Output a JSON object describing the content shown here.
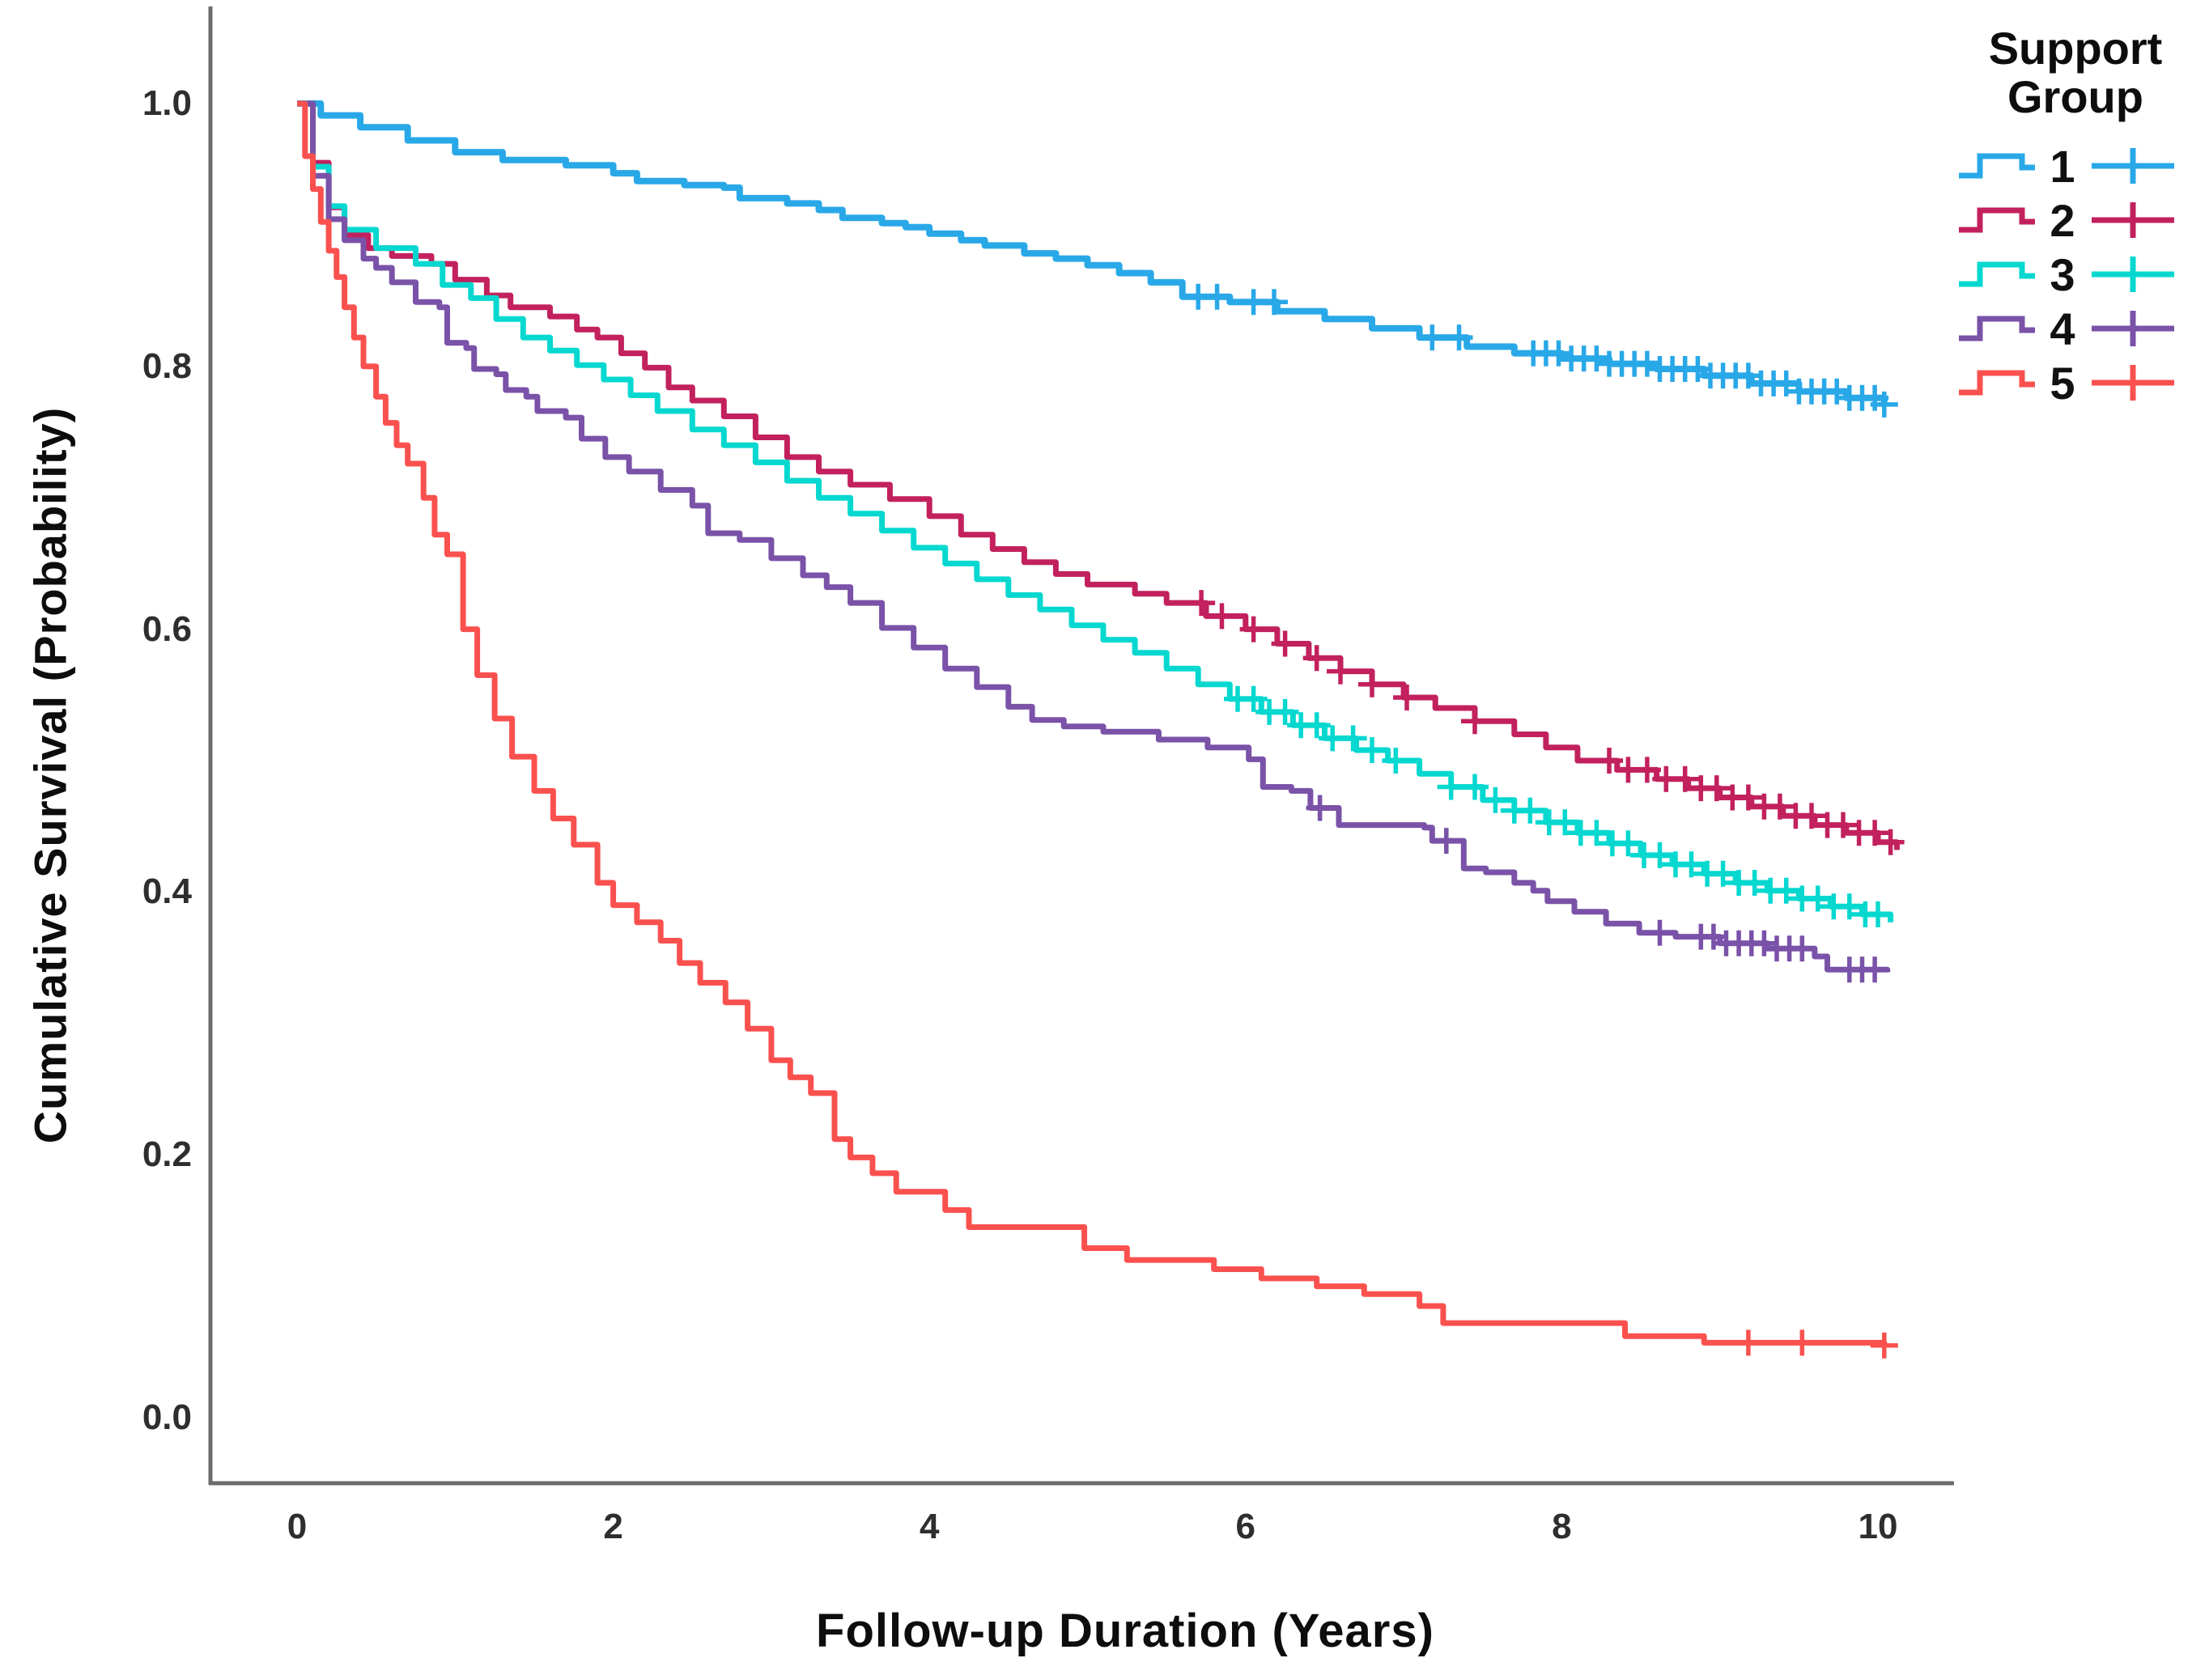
{
  "figure": {
    "background": "#ffffff"
  },
  "axes": {
    "x": {
      "title": "Follow-up Duration (Years)",
      "ticks": [
        "0",
        "2",
        "4",
        "6",
        "8",
        "10"
      ],
      "tick_values": [
        0,
        2,
        4,
        6,
        8,
        10
      ],
      "range": [
        -0.55,
        10.48
      ]
    },
    "y": {
      "title": "Cumulative Survival (Probability)",
      "ticks": [
        "0.0",
        "0.2",
        "0.4",
        "0.6",
        "0.8",
        "1.0"
      ],
      "tick_values": [
        0,
        0.2,
        0.4,
        0.6,
        0.8,
        1.0
      ],
      "range": [
        -0.05,
        1.08
      ]
    }
  },
  "legend": {
    "title": "Support Group",
    "position": "top-right",
    "entries": [
      {
        "label": "1",
        "color": "#29A8E8",
        "line_icon": "step-line",
        "censor_icon": "plus-cross"
      },
      {
        "label": "2",
        "color": "#C2215E",
        "line_icon": "step-line",
        "censor_icon": "plus-cross"
      },
      {
        "label": "3",
        "color": "#06D8D0",
        "line_icon": "step-line",
        "censor_icon": "plus-cross"
      },
      {
        "label": "4",
        "color": "#7A52A8",
        "line_icon": "step-line",
        "censor_icon": "plus-cross"
      },
      {
        "label": "5",
        "color": "#FA514E",
        "line_icon": "step-line",
        "censor_icon": "plus-cross"
      }
    ]
  },
  "chart_data": {
    "type": "line",
    "subtype": "kaplan-meier-survival-step",
    "title": "",
    "xlabel": "Follow-up Duration (Years)",
    "ylabel": "Cumulative Survival (Probability)",
    "xlim": [
      -0.55,
      10.48
    ],
    "ylim": [
      -0.05,
      1.08
    ],
    "grid": false,
    "legend_position": "top-right",
    "series": [
      {
        "name": "1",
        "color": "#29A8E8",
        "points": [
          [
            0,
            1.0
          ],
          [
            0.15,
            0.991
          ],
          [
            0.4,
            0.982
          ],
          [
            0.7,
            0.972
          ],
          [
            1.0,
            0.963
          ],
          [
            1.3,
            0.957
          ],
          [
            1.7,
            0.953
          ],
          [
            2.0,
            0.947
          ],
          [
            2.15,
            0.941
          ],
          [
            2.45,
            0.938
          ],
          [
            2.7,
            0.936
          ],
          [
            2.8,
            0.928
          ],
          [
            3.1,
            0.924
          ],
          [
            3.3,
            0.919
          ],
          [
            3.45,
            0.913
          ],
          [
            3.7,
            0.909
          ],
          [
            3.85,
            0.906
          ],
          [
            4.0,
            0.901
          ],
          [
            4.2,
            0.896
          ],
          [
            4.35,
            0.892
          ],
          [
            4.6,
            0.886
          ],
          [
            4.8,
            0.882
          ],
          [
            5.0,
            0.877
          ],
          [
            5.2,
            0.871
          ],
          [
            5.4,
            0.864
          ],
          [
            5.6,
            0.853
          ],
          [
            5.9,
            0.849
          ],
          [
            6.2,
            0.842
          ],
          [
            6.5,
            0.836
          ],
          [
            6.8,
            0.829
          ],
          [
            7.1,
            0.822
          ],
          [
            7.4,
            0.815
          ],
          [
            7.7,
            0.81
          ],
          [
            8.0,
            0.806
          ],
          [
            8.3,
            0.802
          ],
          [
            8.6,
            0.798
          ],
          [
            8.9,
            0.793
          ],
          [
            9.2,
            0.787
          ],
          [
            9.5,
            0.781
          ],
          [
            9.8,
            0.776
          ],
          [
            10.04,
            0.771
          ]
        ],
        "censor_times": [
          5.7,
          5.82,
          6.05,
          6.18,
          7.18,
          7.35,
          7.82,
          7.9,
          7.98,
          8.06,
          8.14,
          8.22,
          8.3,
          8.38,
          8.46,
          8.54,
          8.62,
          8.7,
          8.78,
          8.86,
          8.94,
          9.02,
          9.1,
          9.18,
          9.26,
          9.34,
          9.42,
          9.5,
          9.58,
          9.66,
          9.74,
          9.82,
          9.9,
          9.98,
          10.04
        ]
      },
      {
        "name": "2",
        "color": "#C2215E",
        "points": [
          [
            0,
            1.0
          ],
          [
            0.1,
            0.955
          ],
          [
            0.2,
            0.921
          ],
          [
            0.3,
            0.9
          ],
          [
            0.45,
            0.89
          ],
          [
            0.6,
            0.884
          ],
          [
            0.85,
            0.878
          ],
          [
            1.0,
            0.866
          ],
          [
            1.2,
            0.854
          ],
          [
            1.35,
            0.845
          ],
          [
            1.6,
            0.838
          ],
          [
            1.77,
            0.828
          ],
          [
            1.9,
            0.822
          ],
          [
            2.05,
            0.81
          ],
          [
            2.2,
            0.799
          ],
          [
            2.35,
            0.784
          ],
          [
            2.5,
            0.774
          ],
          [
            2.7,
            0.762
          ],
          [
            2.9,
            0.746
          ],
          [
            3.1,
            0.731
          ],
          [
            3.3,
            0.72
          ],
          [
            3.5,
            0.71
          ],
          [
            3.75,
            0.699
          ],
          [
            4.0,
            0.686
          ],
          [
            4.2,
            0.672
          ],
          [
            4.4,
            0.661
          ],
          [
            4.6,
            0.651
          ],
          [
            4.8,
            0.642
          ],
          [
            5.0,
            0.634
          ],
          [
            5.3,
            0.627
          ],
          [
            5.5,
            0.62
          ],
          [
            5.75,
            0.61
          ],
          [
            6.0,
            0.6
          ],
          [
            6.2,
            0.589
          ],
          [
            6.4,
            0.578
          ],
          [
            6.6,
            0.568
          ],
          [
            6.8,
            0.558
          ],
          [
            7.0,
            0.548
          ],
          [
            7.2,
            0.54
          ],
          [
            7.45,
            0.53
          ],
          [
            7.7,
            0.52
          ],
          [
            7.9,
            0.51
          ],
          [
            8.1,
            0.5
          ],
          [
            8.35,
            0.493
          ],
          [
            8.6,
            0.486
          ],
          [
            8.8,
            0.479
          ],
          [
            9.0,
            0.472
          ],
          [
            9.2,
            0.465
          ],
          [
            9.4,
            0.458
          ],
          [
            9.6,
            0.451
          ],
          [
            9.8,
            0.445
          ],
          [
            10.0,
            0.438
          ],
          [
            10.12,
            0.432
          ]
        ],
        "censor_times": [
          5.72,
          5.85,
          6.05,
          6.25,
          6.45,
          6.6,
          6.8,
          7.02,
          7.45,
          8.3,
          8.42,
          8.54,
          8.66,
          8.78,
          8.88,
          8.98,
          9.08,
          9.18,
          9.28,
          9.38,
          9.48,
          9.58,
          9.68,
          9.78,
          9.88,
          9.98,
          10.08
        ]
      },
      {
        "name": "3",
        "color": "#06D8D0",
        "points": [
          [
            0,
            1.0
          ],
          [
            0.1,
            0.952
          ],
          [
            0.2,
            0.922
          ],
          [
            0.3,
            0.904
          ],
          [
            0.5,
            0.89
          ],
          [
            0.75,
            0.878
          ],
          [
            0.92,
            0.862
          ],
          [
            1.1,
            0.852
          ],
          [
            1.26,
            0.836
          ],
          [
            1.43,
            0.822
          ],
          [
            1.6,
            0.812
          ],
          [
            1.77,
            0.801
          ],
          [
            1.94,
            0.79
          ],
          [
            2.11,
            0.778
          ],
          [
            2.28,
            0.766
          ],
          [
            2.5,
            0.752
          ],
          [
            2.7,
            0.74
          ],
          [
            2.9,
            0.727
          ],
          [
            3.1,
            0.713
          ],
          [
            3.3,
            0.7
          ],
          [
            3.5,
            0.688
          ],
          [
            3.7,
            0.675
          ],
          [
            3.9,
            0.662
          ],
          [
            4.1,
            0.65
          ],
          [
            4.3,
            0.638
          ],
          [
            4.5,
            0.626
          ],
          [
            4.7,
            0.615
          ],
          [
            4.9,
            0.603
          ],
          [
            5.1,
            0.592
          ],
          [
            5.3,
            0.582
          ],
          [
            5.5,
            0.57
          ],
          [
            5.7,
            0.558
          ],
          [
            5.9,
            0.547
          ],
          [
            6.1,
            0.537
          ],
          [
            6.3,
            0.527
          ],
          [
            6.5,
            0.517
          ],
          [
            6.7,
            0.508
          ],
          [
            6.9,
            0.5
          ],
          [
            7.1,
            0.49
          ],
          [
            7.3,
            0.48
          ],
          [
            7.5,
            0.47
          ],
          [
            7.7,
            0.462
          ],
          [
            7.9,
            0.453
          ],
          [
            8.1,
            0.445
          ],
          [
            8.3,
            0.437
          ],
          [
            8.5,
            0.428
          ],
          [
            8.7,
            0.421
          ],
          [
            8.9,
            0.414
          ],
          [
            9.1,
            0.407
          ],
          [
            9.3,
            0.401
          ],
          [
            9.5,
            0.395
          ],
          [
            9.7,
            0.389
          ],
          [
            9.9,
            0.383
          ],
          [
            10.08,
            0.377
          ]
        ],
        "censor_times": [
          5.95,
          6.05,
          6.15,
          6.25,
          6.35,
          6.45,
          6.55,
          6.68,
          6.8,
          6.95,
          7.3,
          7.45,
          7.58,
          7.7,
          7.8,
          7.92,
          8.02,
          8.12,
          8.22,
          8.32,
          8.42,
          8.52,
          8.62,
          8.72,
          8.82,
          8.92,
          9.02,
          9.12,
          9.22,
          9.32,
          9.42,
          9.52,
          9.62,
          9.72,
          9.82,
          9.92,
          10.0
        ]
      },
      {
        "name": "4",
        "color": "#7A52A8",
        "points": [
          [
            0,
            1.0
          ],
          [
            0.1,
            0.945
          ],
          [
            0.2,
            0.912
          ],
          [
            0.3,
            0.896
          ],
          [
            0.42,
            0.882
          ],
          [
            0.5,
            0.875
          ],
          [
            0.6,
            0.864
          ],
          [
            0.75,
            0.849
          ],
          [
            0.9,
            0.845
          ],
          [
            0.95,
            0.818
          ],
          [
            1.07,
            0.814
          ],
          [
            1.12,
            0.798
          ],
          [
            1.26,
            0.794
          ],
          [
            1.32,
            0.782
          ],
          [
            1.45,
            0.777
          ],
          [
            1.52,
            0.766
          ],
          [
            1.7,
            0.761
          ],
          [
            1.8,
            0.745
          ],
          [
            1.95,
            0.731
          ],
          [
            2.1,
            0.72
          ],
          [
            2.3,
            0.706
          ],
          [
            2.5,
            0.694
          ],
          [
            2.6,
            0.673
          ],
          [
            2.8,
            0.668
          ],
          [
            3.0,
            0.654
          ],
          [
            3.2,
            0.641
          ],
          [
            3.35,
            0.632
          ],
          [
            3.5,
            0.62
          ],
          [
            3.7,
            0.601
          ],
          [
            3.9,
            0.586
          ],
          [
            4.1,
            0.57
          ],
          [
            4.3,
            0.556
          ],
          [
            4.5,
            0.541
          ],
          [
            4.65,
            0.531
          ],
          [
            4.85,
            0.526
          ],
          [
            5.1,
            0.522
          ],
          [
            5.45,
            0.516
          ],
          [
            5.76,
            0.51
          ],
          [
            6.02,
            0.501
          ],
          [
            6.11,
            0.48
          ],
          [
            6.29,
            0.477
          ],
          [
            6.41,
            0.464
          ],
          [
            6.59,
            0.451
          ],
          [
            7.13,
            0.449
          ],
          [
            7.18,
            0.439
          ],
          [
            7.38,
            0.418
          ],
          [
            7.52,
            0.415
          ],
          [
            7.7,
            0.407
          ],
          [
            7.82,
            0.401
          ],
          [
            7.91,
            0.393
          ],
          [
            8.08,
            0.385
          ],
          [
            8.28,
            0.376
          ],
          [
            8.49,
            0.369
          ],
          [
            8.72,
            0.366
          ],
          [
            9.0,
            0.361
          ],
          [
            9.3,
            0.357
          ],
          [
            9.6,
            0.351
          ],
          [
            9.68,
            0.341
          ],
          [
            10.06,
            0.339
          ]
        ],
        "censor_times": [
          6.47,
          7.27,
          8.62,
          8.88,
          8.96,
          9.04,
          9.12,
          9.2,
          9.28,
          9.36,
          9.44,
          9.52,
          9.82,
          9.9,
          9.98
        ]
      },
      {
        "name": "5",
        "color": "#FA514E",
        "points": [
          [
            0,
            1.0
          ],
          [
            0.05,
            0.96
          ],
          [
            0.1,
            0.935
          ],
          [
            0.15,
            0.91
          ],
          [
            0.2,
            0.888
          ],
          [
            0.25,
            0.868
          ],
          [
            0.3,
            0.845
          ],
          [
            0.36,
            0.822
          ],
          [
            0.42,
            0.8
          ],
          [
            0.5,
            0.777
          ],
          [
            0.56,
            0.757
          ],
          [
            0.63,
            0.74
          ],
          [
            0.7,
            0.726
          ],
          [
            0.8,
            0.7
          ],
          [
            0.87,
            0.672
          ],
          [
            0.95,
            0.657
          ],
          [
            1.05,
            0.6
          ],
          [
            1.14,
            0.565
          ],
          [
            1.25,
            0.532
          ],
          [
            1.36,
            0.503
          ],
          [
            1.5,
            0.477
          ],
          [
            1.62,
            0.456
          ],
          [
            1.75,
            0.436
          ],
          [
            1.9,
            0.407
          ],
          [
            2.0,
            0.39
          ],
          [
            2.15,
            0.377
          ],
          [
            2.3,
            0.363
          ],
          [
            2.42,
            0.346
          ],
          [
            2.55,
            0.331
          ],
          [
            2.71,
            0.316
          ],
          [
            2.85,
            0.296
          ],
          [
            3.0,
            0.272
          ],
          [
            3.12,
            0.259
          ],
          [
            3.25,
            0.247
          ],
          [
            3.4,
            0.212
          ],
          [
            3.5,
            0.198
          ],
          [
            3.64,
            0.186
          ],
          [
            3.79,
            0.172
          ],
          [
            4.1,
            0.158
          ],
          [
            4.25,
            0.145
          ],
          [
            4.98,
            0.129
          ],
          [
            5.25,
            0.12
          ],
          [
            5.8,
            0.113
          ],
          [
            6.1,
            0.106
          ],
          [
            6.45,
            0.1
          ],
          [
            6.75,
            0.094
          ],
          [
            7.1,
            0.085
          ],
          [
            7.25,
            0.072
          ],
          [
            8.4,
            0.062
          ],
          [
            8.9,
            0.057
          ],
          [
            10.04,
            0.055
          ]
        ],
        "censor_times": [
          9.18,
          9.52,
          10.04
        ]
      }
    ]
  }
}
